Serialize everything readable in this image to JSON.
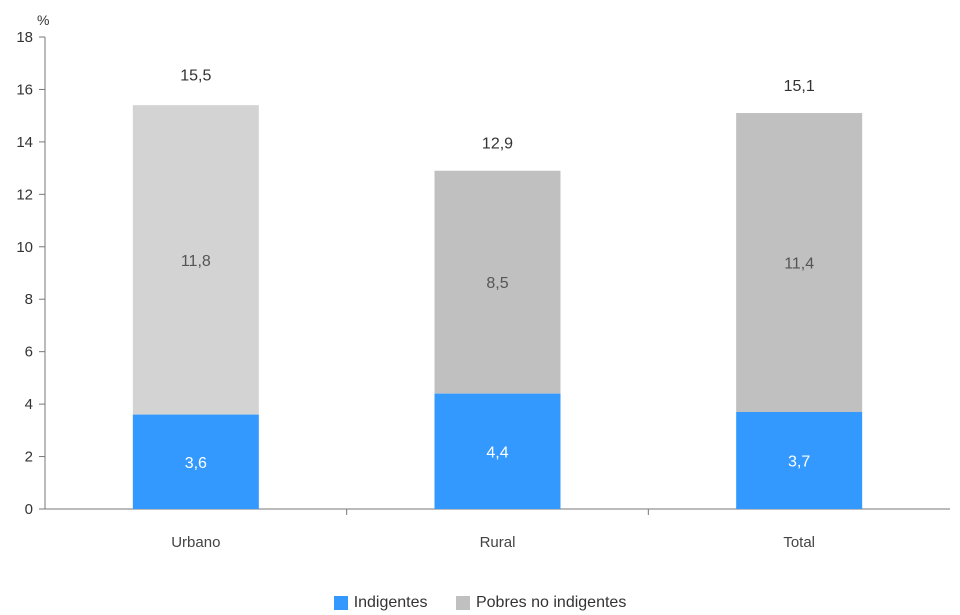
{
  "chart_data": {
    "type": "bar",
    "stacked": true,
    "ylabel": "%",
    "ylim": [
      0,
      18
    ],
    "yticks": [
      0,
      2,
      4,
      6,
      8,
      10,
      12,
      14,
      16,
      18
    ],
    "categories": [
      "Urbano",
      "Rural",
      "Total"
    ],
    "series": [
      {
        "name": "Indigentes",
        "color": "#3399ff",
        "values": [
          3.6,
          4.4,
          3.7
        ],
        "labels": [
          "3,6",
          "4,4",
          "3,7"
        ]
      },
      {
        "name": "Pobres no indigentes",
        "color": "#c0c0c0",
        "values": [
          11.8,
          8.5,
          11.4
        ],
        "labels": [
          "11,8",
          "8,5",
          "11,4"
        ]
      }
    ],
    "totals": [
      15.5,
      12.9,
      15.1
    ],
    "total_labels": [
      "15,5",
      "12,9",
      "15,1"
    ],
    "bar_colors_gray": [
      "#d3d3d3",
      "#c0c0c0",
      "#c0c0c0"
    ],
    "legend": {
      "position": "bottom",
      "items": [
        "Indigentes",
        "Pobres no indigentes"
      ]
    }
  }
}
